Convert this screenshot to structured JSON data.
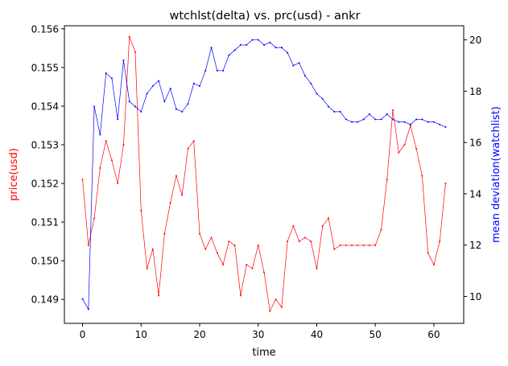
{
  "chart_data": {
    "type": "line",
    "title": "wtchlst(delta) vs. prc(usd) - ankr",
    "xlabel": "time",
    "ylabel_left": "price(usd)",
    "ylabel_right": "mean deviation(watchlist)",
    "xlim": [
      -3.1,
      65.1
    ],
    "ylim_left": [
      0.14838,
      0.15608
    ],
    "ylim_right": [
      8.95,
      20.55
    ],
    "x_ticks": [
      0,
      10,
      20,
      30,
      40,
      50,
      60
    ],
    "y_ticks_left": [
      0.149,
      0.15,
      0.151,
      0.152,
      0.153,
      0.154,
      0.155,
      0.156
    ],
    "y_ticks_right": [
      10,
      12,
      14,
      16,
      18,
      20
    ],
    "grid": false,
    "series": [
      {
        "axis": "left",
        "color": "#ff0000",
        "x": [
          0,
          1,
          2,
          3,
          4,
          5,
          6,
          7,
          8,
          9,
          10,
          11,
          12,
          13,
          14,
          15,
          16,
          17,
          18,
          19,
          20,
          21,
          22,
          23,
          24,
          25,
          26,
          27,
          28,
          29,
          30,
          31,
          32,
          33,
          34,
          35,
          36,
          37,
          38,
          39,
          40,
          41,
          42,
          43,
          44,
          45,
          46,
          47,
          48,
          49,
          50,
          51,
          52,
          53,
          54,
          55,
          56,
          57,
          58,
          59,
          60,
          61,
          62
        ],
        "values": [
          0.1521,
          0.1504,
          0.1511,
          0.1524,
          0.1531,
          0.1526,
          0.152,
          0.153,
          0.1558,
          0.1554,
          0.1513,
          0.1498,
          0.1503,
          0.1491,
          0.1507,
          0.1515,
          0.1522,
          0.1517,
          0.1529,
          0.1531,
          0.1507,
          0.1503,
          0.1506,
          0.1502,
          0.1499,
          0.1505,
          0.1504,
          0.1491,
          0.1499,
          0.1498,
          0.1504,
          0.1497,
          0.1487,
          0.149,
          0.1488,
          0.1505,
          0.1509,
          0.1505,
          0.1506,
          0.1505,
          0.1498,
          0.1509,
          0.1511,
          0.1503,
          0.1504,
          0.1504,
          0.1504,
          0.1504,
          0.1504,
          0.1504,
          0.1504,
          0.1508,
          0.1521,
          0.1539,
          0.1528,
          0.153,
          0.1535,
          0.1529,
          0.1522,
          0.1502,
          0.1499,
          0.1505,
          0.152
        ]
      },
      {
        "axis": "right",
        "color": "#0000ff",
        "x": [
          0,
          1,
          2,
          3,
          4,
          5,
          6,
          7,
          8,
          9,
          10,
          11,
          12,
          13,
          14,
          15,
          16,
          17,
          18,
          19,
          20,
          21,
          22,
          23,
          24,
          25,
          26,
          27,
          28,
          29,
          30,
          31,
          32,
          33,
          34,
          35,
          36,
          37,
          38,
          39,
          40,
          41,
          42,
          43,
          44,
          45,
          46,
          47,
          48,
          49,
          50,
          51,
          52,
          53,
          54,
          55,
          56,
          57,
          58,
          59,
          60,
          61,
          62
        ],
        "values": [
          9.9,
          9.5,
          17.4,
          16.3,
          18.7,
          18.5,
          16.9,
          19.2,
          17.6,
          17.4,
          17.2,
          17.9,
          18.2,
          18.4,
          17.6,
          18.1,
          17.3,
          17.2,
          17.5,
          18.3,
          18.2,
          18.8,
          19.7,
          18.8,
          18.8,
          19.4,
          19.6,
          19.8,
          19.8,
          20.0,
          20.0,
          19.8,
          19.9,
          19.7,
          19.7,
          19.5,
          19.0,
          19.1,
          18.6,
          18.3,
          17.9,
          17.7,
          17.4,
          17.2,
          17.2,
          16.9,
          16.8,
          16.8,
          16.9,
          17.1,
          16.9,
          16.9,
          17.1,
          16.9,
          16.8,
          16.8,
          16.7,
          16.9,
          16.9,
          16.8,
          16.8,
          16.7,
          16.6
        ]
      }
    ]
  }
}
